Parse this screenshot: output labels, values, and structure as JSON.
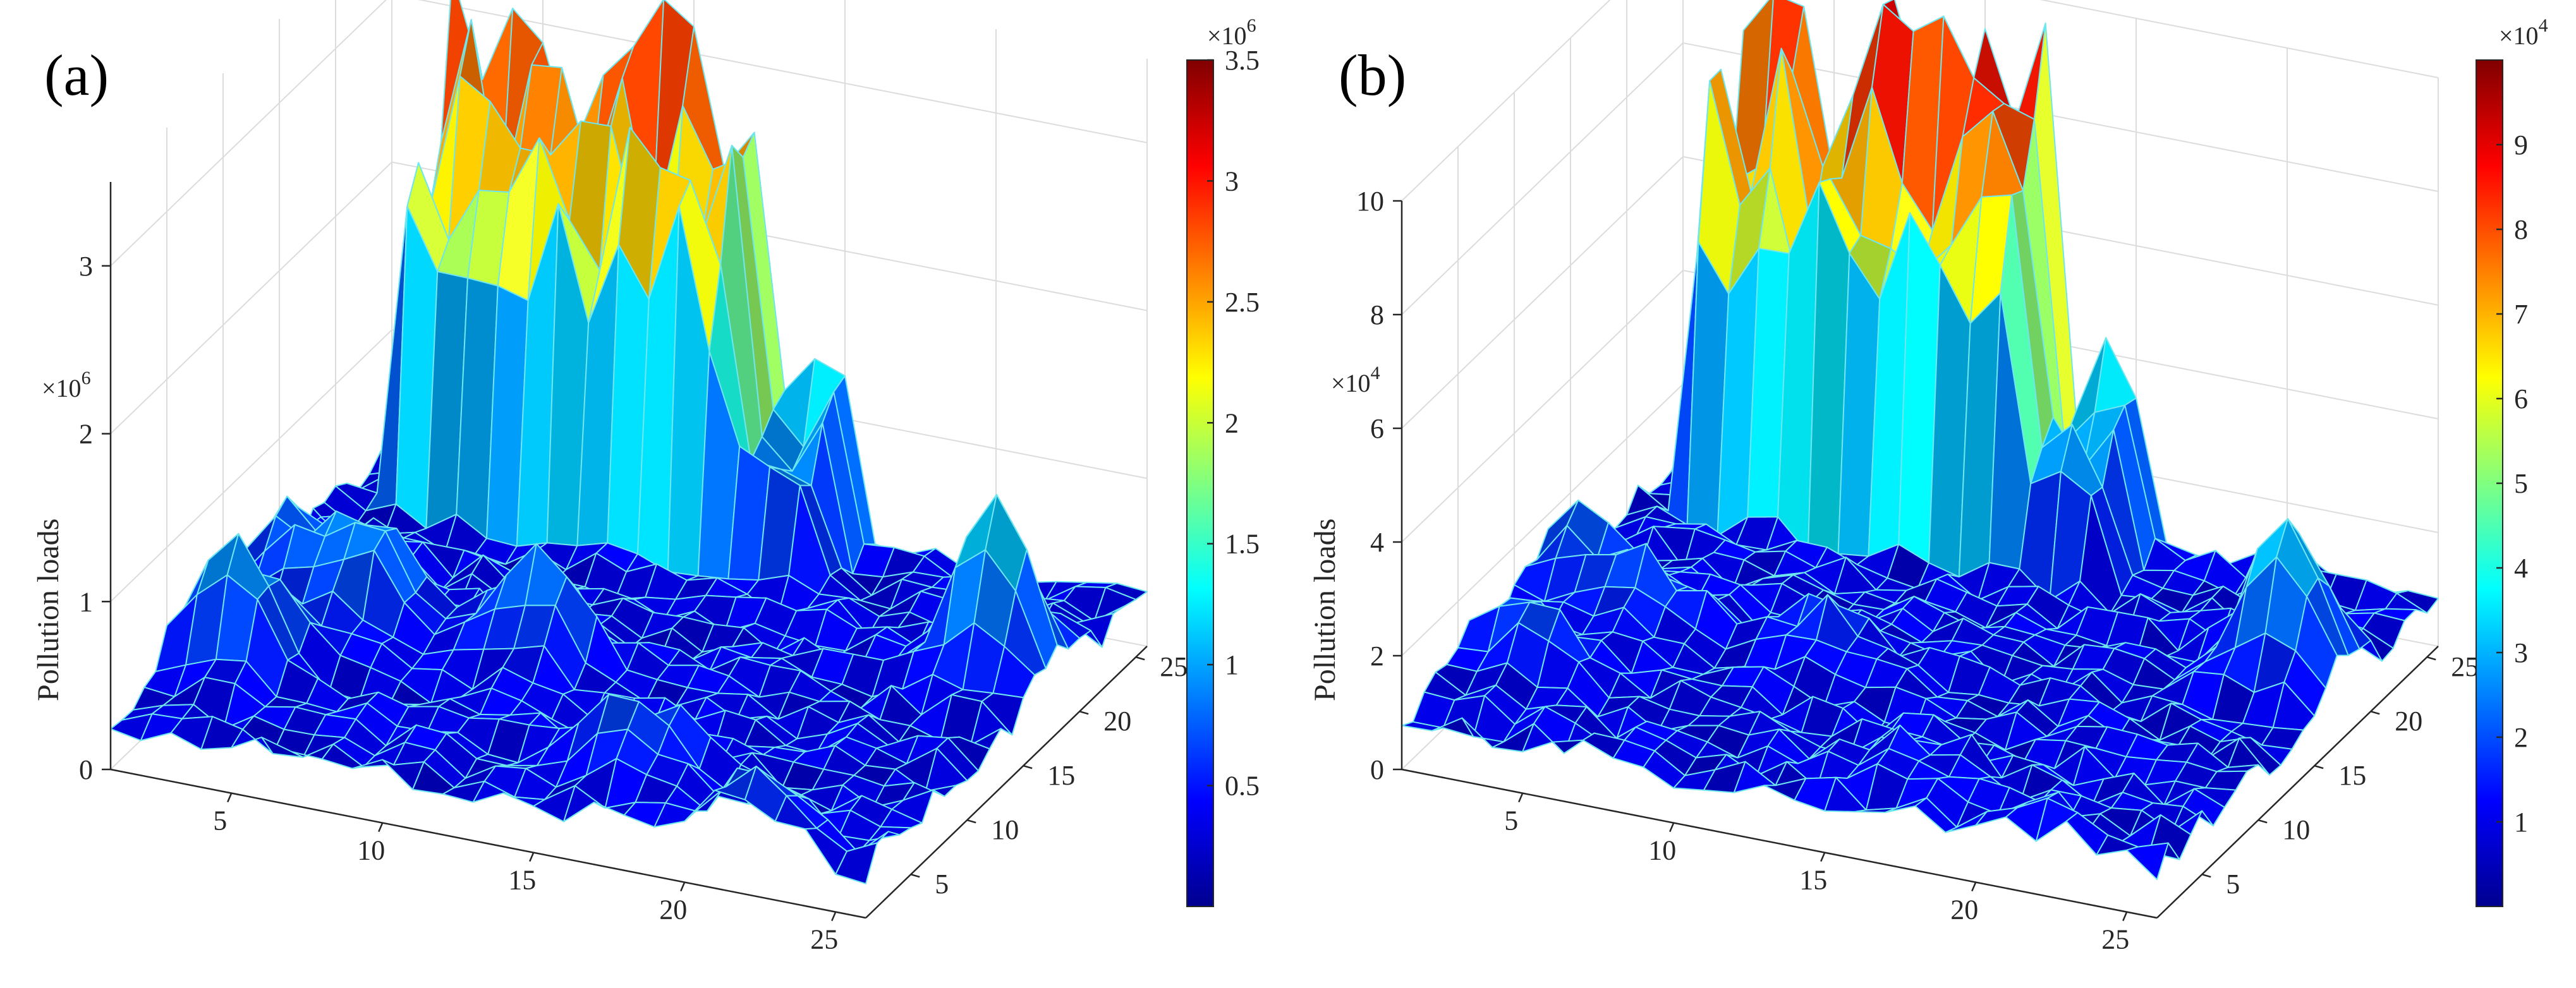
{
  "chart_data": [
    {
      "type": "surface",
      "panel_label": "(a)",
      "zlabel": "Pollution loads",
      "z_exponent_base": "×10",
      "z_exponent_power": "6",
      "x_range": [
        1,
        26
      ],
      "y_range": [
        1,
        26
      ],
      "zlim": [
        0,
        3.5
      ],
      "x_ticks": [
        "5",
        "10",
        "15",
        "20",
        "25"
      ],
      "y_ticks": [
        "5",
        "10",
        "15",
        "20",
        "25"
      ],
      "z_ticks": [
        "0",
        "1",
        "2",
        "3"
      ],
      "colorbar": {
        "range": [
          0,
          3.5
        ],
        "ticks": [
          "0.5",
          "1",
          "1.5",
          "2",
          "2.5",
          "3",
          "3.5"
        ],
        "exponent_base": "×10",
        "exponent_power": "6"
      },
      "max_value": 3.3,
      "description_of_peaks": "high ridge along the back row (x 5-13, high y); secondary bump near x 13-16, y 20-24"
    },
    {
      "type": "surface",
      "panel_label": "(b)",
      "zlabel": "Pollution loads",
      "z_exponent_base": "×10",
      "z_exponent_power": "4",
      "x_range": [
        1,
        26
      ],
      "y_range": [
        1,
        26
      ],
      "zlim": [
        0,
        10
      ],
      "x_ticks": [
        "5",
        "10",
        "15",
        "20",
        "25"
      ],
      "y_ticks": [
        "5",
        "10",
        "15",
        "20",
        "25"
      ],
      "z_ticks": [
        "0",
        "2",
        "4",
        "6",
        "8",
        "10"
      ],
      "colorbar": {
        "range": [
          0,
          10
        ],
        "ticks": [
          "1",
          "2",
          "3",
          "4",
          "5",
          "6",
          "7",
          "8",
          "9"
        ],
        "exponent_base": "×10",
        "exponent_power": "4"
      },
      "max_value": 9.6
    }
  ],
  "colormap": [
    "#00008f",
    "#0000ff",
    "#0080ff",
    "#00ffff",
    "#80ff80",
    "#ffff00",
    "#ff8000",
    "#ff0000",
    "#800000"
  ],
  "colors": {
    "mesh_edge": "#6ee6ef",
    "grid": "#dcdcdc",
    "axis": "#262626"
  }
}
